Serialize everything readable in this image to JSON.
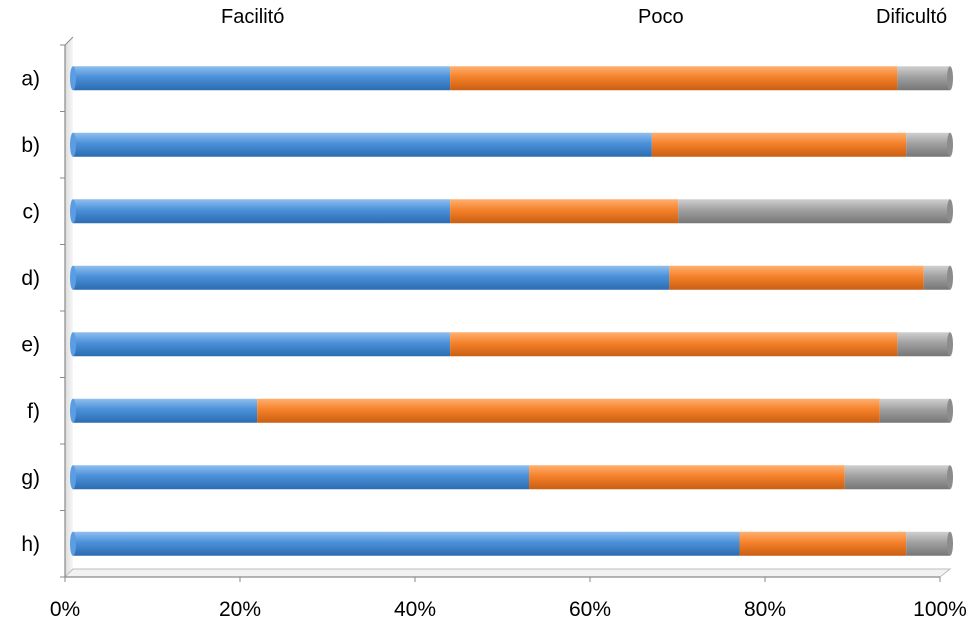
{
  "chart_data": {
    "type": "bar",
    "orientation": "horizontal",
    "stacked": "percent",
    "categories": [
      "a)",
      "b)",
      "c)",
      "d)",
      "e)",
      "f)",
      "g)",
      "h)"
    ],
    "series": [
      {
        "name": "Facilitó",
        "color": "#4a90d9",
        "values": [
          43,
          66,
          43,
          68,
          43,
          21,
          52,
          76
        ]
      },
      {
        "name": "Poco",
        "color": "#f5812a",
        "values": [
          51,
          29,
          26,
          29,
          51,
          71,
          36,
          19
        ]
      },
      {
        "name": "Dificultó",
        "color": "#a0a0a0",
        "values": [
          6,
          5,
          31,
          3,
          6,
          8,
          12,
          5
        ]
      }
    ],
    "xticks": [
      "0%",
      "20%",
      "40%",
      "60%",
      "80%",
      "100%"
    ],
    "xlim": [
      0,
      100
    ],
    "legend_position": "top",
    "grid": false
  }
}
